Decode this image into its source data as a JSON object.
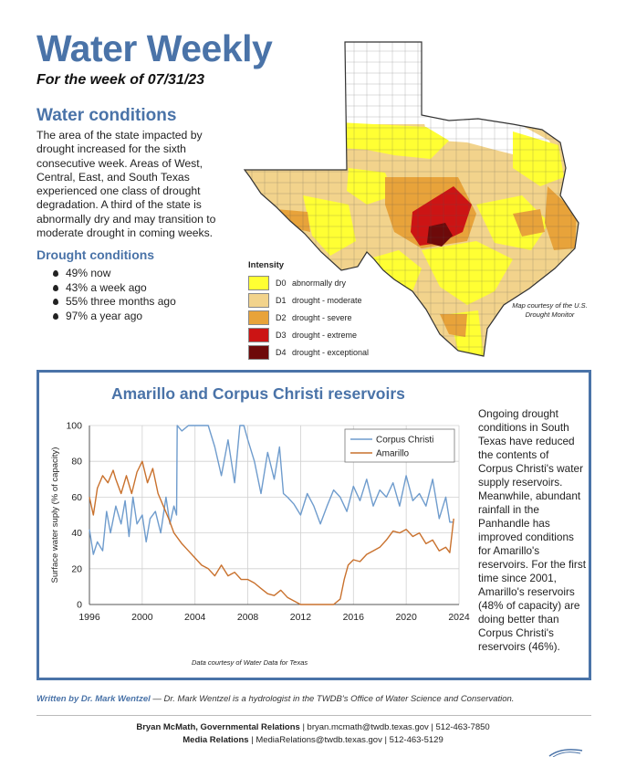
{
  "header": {
    "title": "Water Weekly",
    "subtitle": "For the week of 07/31/23"
  },
  "water_conditions": {
    "heading": "Water conditions",
    "paragraph": "The area of the state impacted by drought increased for the sixth consecutive week. Areas of West, Central, East, and South Texas experienced one class of drought degradation. A third of the state is abnormally dry and may transition to moderate drought in coming weeks."
  },
  "drought_conditions": {
    "heading": "Drought conditions",
    "items": [
      "49% now",
      "43% a week ago",
      "55% three months ago",
      "97% a year ago"
    ]
  },
  "map": {
    "legend_title": "Intensity",
    "legend": [
      {
        "code": "D0",
        "label": "abnormally dry",
        "color": "#ffff33"
      },
      {
        "code": "D1",
        "label": "drought - moderate",
        "color": "#f2d38c"
      },
      {
        "code": "D2",
        "label": "drought - severe",
        "color": "#e8a33a"
      },
      {
        "code": "D3",
        "label": "drought - extreme",
        "color": "#cc1414"
      },
      {
        "code": "D4",
        "label": "drought - exceptional",
        "color": "#6e0a0a"
      }
    ],
    "credit": "Map courtesy of the U.S. Drought Monitor"
  },
  "reservoir_section": {
    "title": "Amarillo and Corpus Christi reservoirs",
    "description": "Ongoing drought conditions in South Texas have reduced the contents of Corpus Christi's water supply reservoirs. Meanwhile, abundant rainfall in the Panhandle has improved conditions for Amarillo's reservoirs. For the first time since 2001, Amarillo's reservoirs (48% of capacity) are doing better than Corpus Christi's reservoirs (46%).",
    "data_credit": "Data courtesy of Water Data for Texas"
  },
  "chart_data": {
    "type": "line",
    "title": "Amarillo and Corpus Christi reservoirs",
    "xlabel": "",
    "ylabel": "Surface water suply (% of capacity)",
    "xlim": [
      1996,
      2024
    ],
    "ylim": [
      0,
      100
    ],
    "xticks": [
      1996,
      2000,
      2004,
      2008,
      2012,
      2016,
      2020,
      2024
    ],
    "yticks": [
      0,
      20,
      40,
      60,
      80,
      100
    ],
    "grid": true,
    "legend_position": "top-right",
    "series": [
      {
        "name": "Corpus Christi",
        "color": "#6f9ccd",
        "x": [
          1996.0,
          1996.3,
          1996.6,
          1997.0,
          1997.3,
          1997.6,
          1998.0,
          1998.4,
          1998.7,
          1999.0,
          1999.3,
          1999.6,
          2000.0,
          2000.3,
          2000.6,
          2001.0,
          2001.4,
          2001.8,
          2002.1,
          2002.4,
          2002.6,
          2002.65,
          2003.0,
          2003.5,
          2004.0,
          2004.5,
          2005.0,
          2005.5,
          2006.0,
          2006.5,
          2007.0,
          2007.4,
          2007.7,
          2008.0,
          2008.5,
          2009.0,
          2009.5,
          2010.0,
          2010.4,
          2010.7,
          2011.0,
          2011.5,
          2012.0,
          2012.5,
          2013.0,
          2013.5,
          2014.0,
          2014.5,
          2015.0,
          2015.5,
          2016.0,
          2016.5,
          2017.0,
          2017.5,
          2018.0,
          2018.5,
          2019.0,
          2019.5,
          2020.0,
          2020.5,
          2021.0,
          2021.5,
          2022.0,
          2022.5,
          2023.0,
          2023.3,
          2023.6
        ],
        "y": [
          42,
          28,
          35,
          30,
          52,
          40,
          55,
          45,
          58,
          38,
          60,
          45,
          50,
          35,
          48,
          52,
          40,
          60,
          45,
          55,
          50,
          100,
          97,
          100,
          100,
          100,
          100,
          88,
          72,
          92,
          68,
          100,
          100,
          92,
          80,
          62,
          85,
          70,
          88,
          62,
          60,
          56,
          50,
          62,
          55,
          45,
          55,
          64,
          60,
          52,
          66,
          58,
          70,
          55,
          64,
          60,
          68,
          55,
          72,
          58,
          62,
          55,
          70,
          48,
          60,
          46,
          46
        ]
      },
      {
        "name": "Amarillo",
        "color": "#c9712d",
        "x": [
          1996.0,
          1996.3,
          1996.6,
          1997.0,
          1997.4,
          1997.8,
          1998.0,
          1998.4,
          1998.8,
          1999.2,
          1999.6,
          2000.0,
          2000.4,
          2000.8,
          2001.2,
          2001.6,
          2002.0,
          2002.4,
          2003.0,
          2003.5,
          2004.0,
          2004.5,
          2005.0,
          2005.5,
          2006.0,
          2006.5,
          2007.0,
          2007.5,
          2008.0,
          2008.5,
          2009.0,
          2009.5,
          2010.0,
          2010.5,
          2011.0,
          2011.5,
          2012.0,
          2013.0,
          2014.0,
          2014.5,
          2015.0,
          2015.3,
          2015.6,
          2016.0,
          2016.5,
          2017.0,
          2017.5,
          2018.0,
          2018.5,
          2019.0,
          2019.5,
          2020.0,
          2020.5,
          2021.0,
          2021.5,
          2022.0,
          2022.5,
          2023.0,
          2023.3,
          2023.6
        ],
        "y": [
          60,
          50,
          65,
          72,
          68,
          75,
          70,
          62,
          72,
          62,
          74,
          80,
          68,
          76,
          62,
          55,
          48,
          40,
          34,
          30,
          26,
          22,
          20,
          16,
          22,
          16,
          18,
          14,
          14,
          12,
          9,
          6,
          5,
          8,
          4,
          2,
          0,
          0,
          0,
          0,
          3,
          14,
          22,
          25,
          24,
          28,
          30,
          32,
          36,
          41,
          40,
          42,
          38,
          40,
          34,
          36,
          30,
          32,
          29,
          48
        ]
      }
    ]
  },
  "footer": {
    "written_by_label": "Written by Dr. Mark Wentzel",
    "written_by_rest": " — Dr. Mark Wentzel is a hydrologist in the TWDB's Office of Water Science and Conservation.",
    "contact1_name": "Bryan McMath, Governmental Relations",
    "contact1_rest": " | bryan.mcmath@twdb.texas.gov | 512-463-7850",
    "contact2_name": "Media Relations",
    "contact2_rest": " | MediaRelations@twdb.texas.gov | 512-463-5129"
  }
}
